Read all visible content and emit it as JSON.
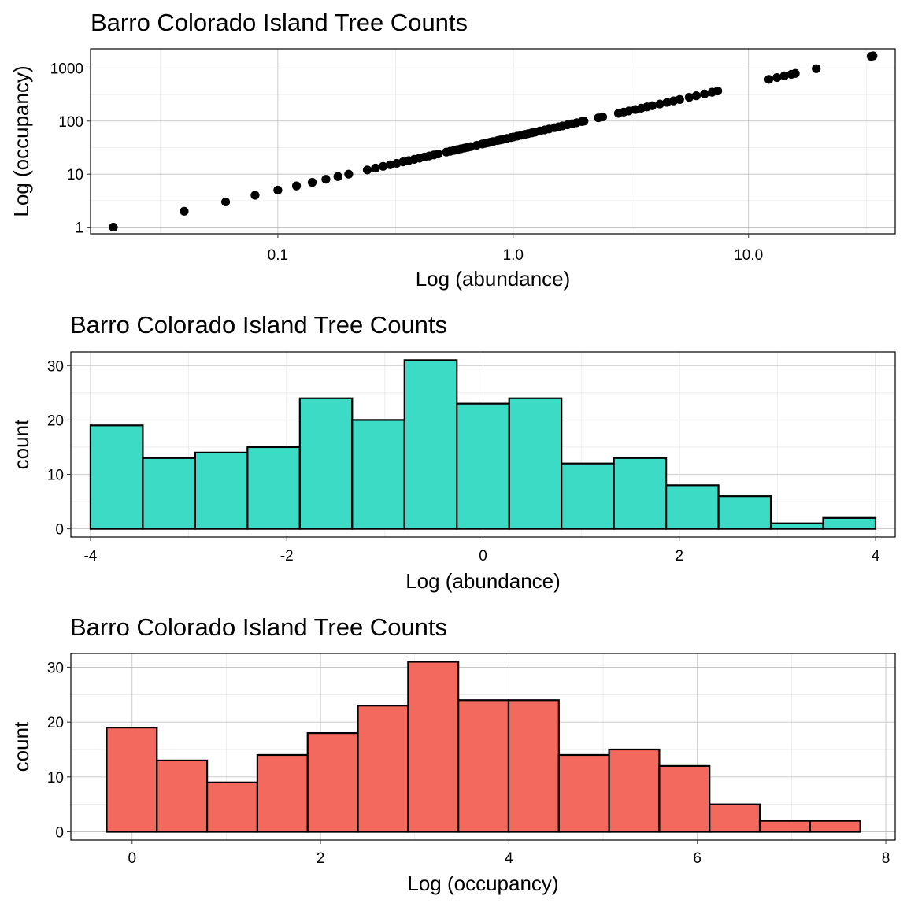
{
  "chart_data": [
    {
      "type": "scatter",
      "title": "Barro Colorado Island Tree Counts",
      "xlabel": "Log (abundance)",
      "ylabel": "Log (occupancy)",
      "xscale": "log10",
      "yscale": "log10",
      "xlim": [
        0.016,
        42
      ],
      "ylim": [
        0.75,
        2300
      ],
      "xticks": [
        0.1,
        1.0,
        10.0
      ],
      "xtick_labels": [
        "0.1",
        "1.0",
        "10.0"
      ],
      "yticks": [
        1,
        10,
        100,
        1000
      ],
      "ytick_labels": [
        "1",
        "10",
        "100",
        "1000"
      ],
      "grid": true,
      "marker_color": "#000000",
      "points": [
        [
          0.02,
          1
        ],
        [
          0.04,
          2
        ],
        [
          0.06,
          3
        ],
        [
          0.08,
          4
        ],
        [
          0.1,
          5
        ],
        [
          0.12,
          6
        ],
        [
          0.14,
          7
        ],
        [
          0.16,
          8
        ],
        [
          0.18,
          9
        ],
        [
          0.2,
          10
        ],
        [
          0.24,
          12
        ],
        [
          0.26,
          13
        ],
        [
          0.28,
          14
        ],
        [
          0.3,
          15
        ],
        [
          0.32,
          16
        ],
        [
          0.34,
          17
        ],
        [
          0.36,
          18
        ],
        [
          0.38,
          19
        ],
        [
          0.4,
          20
        ],
        [
          0.42,
          21
        ],
        [
          0.44,
          22
        ],
        [
          0.46,
          23
        ],
        [
          0.48,
          24
        ],
        [
          0.52,
          26
        ],
        [
          0.54,
          27
        ],
        [
          0.56,
          28
        ],
        [
          0.58,
          29
        ],
        [
          0.6,
          30
        ],
        [
          0.62,
          31
        ],
        [
          0.64,
          32
        ],
        [
          0.66,
          33
        ],
        [
          0.7,
          35
        ],
        [
          0.74,
          37
        ],
        [
          0.76,
          38
        ],
        [
          0.78,
          39
        ],
        [
          0.8,
          40
        ],
        [
          0.82,
          41
        ],
        [
          0.86,
          43
        ],
        [
          0.88,
          44
        ],
        [
          0.9,
          45
        ],
        [
          0.94,
          47
        ],
        [
          0.98,
          49
        ],
        [
          1.0,
          50
        ],
        [
          1.04,
          52
        ],
        [
          1.08,
          54
        ],
        [
          1.12,
          56
        ],
        [
          1.16,
          58
        ],
        [
          1.2,
          60
        ],
        [
          1.24,
          62
        ],
        [
          1.3,
          65
        ],
        [
          1.36,
          68
        ],
        [
          1.42,
          71
        ],
        [
          1.5,
          75
        ],
        [
          1.56,
          78
        ],
        [
          1.62,
          81
        ],
        [
          1.7,
          85
        ],
        [
          1.78,
          89
        ],
        [
          1.86,
          93
        ],
        [
          1.96,
          98
        ],
        [
          2.0,
          100
        ],
        [
          2.3,
          115
        ],
        [
          2.4,
          120
        ],
        [
          2.8,
          140
        ],
        [
          2.95,
          148
        ],
        [
          3.1,
          155
        ],
        [
          3.3,
          165
        ],
        [
          3.5,
          175
        ],
        [
          3.7,
          185
        ],
        [
          3.9,
          195
        ],
        [
          4.2,
          210
        ],
        [
          4.5,
          225
        ],
        [
          4.8,
          240
        ],
        [
          5.1,
          255
        ],
        [
          5.6,
          280
        ],
        [
          6.0,
          300
        ],
        [
          6.5,
          325
        ],
        [
          7.0,
          350
        ],
        [
          7.4,
          370
        ],
        [
          12.2,
          610
        ],
        [
          13.2,
          660
        ],
        [
          14.2,
          710
        ],
        [
          15.2,
          760
        ],
        [
          15.8,
          790
        ],
        [
          19.4,
          970
        ],
        [
          33.2,
          1660
        ],
        [
          33.8,
          1690
        ]
      ]
    },
    {
      "type": "bar",
      "subtype": "histogram",
      "title": "Barro Colorado Island Tree Counts",
      "xlabel": "Log (abundance)",
      "ylabel": "count",
      "xlim": [
        -4.2,
        4.2
      ],
      "ylim": [
        -1.5,
        32.5
      ],
      "xticks": [
        -4,
        -2,
        0,
        2,
        4
      ],
      "xtick_labels": [
        "-4",
        "-2",
        "0",
        "2",
        "4"
      ],
      "yticks": [
        0,
        10,
        20,
        30
      ],
      "ytick_labels": [
        "0",
        "10",
        "20",
        "30"
      ],
      "grid": true,
      "fill_color": "#3bdbc5",
      "bin_start": -4.0,
      "bin_width": 0.5333,
      "values": [
        19,
        13,
        14,
        15,
        24,
        20,
        31,
        23,
        24,
        12,
        13,
        8,
        6,
        1,
        2
      ]
    },
    {
      "type": "bar",
      "subtype": "histogram",
      "title": "Barro Colorado Island Tree Counts",
      "xlabel": "Log (occupancy)",
      "ylabel": "count",
      "xlim": [
        -0.65,
        8.1
      ],
      "ylim": [
        -1.5,
        32.5
      ],
      "xticks": [
        0,
        2,
        4,
        6,
        8
      ],
      "xtick_labels": [
        "0",
        "2",
        "4",
        "6",
        "8"
      ],
      "yticks": [
        0,
        10,
        20,
        30
      ],
      "ytick_labels": [
        "0",
        "10",
        "20",
        "30"
      ],
      "grid": true,
      "fill_color": "#f4695e",
      "bin_start": -0.27,
      "bin_width": 0.5333,
      "values": [
        19,
        13,
        9,
        14,
        18,
        23,
        31,
        24,
        24,
        14,
        15,
        12,
        5,
        2,
        2
      ]
    }
  ]
}
